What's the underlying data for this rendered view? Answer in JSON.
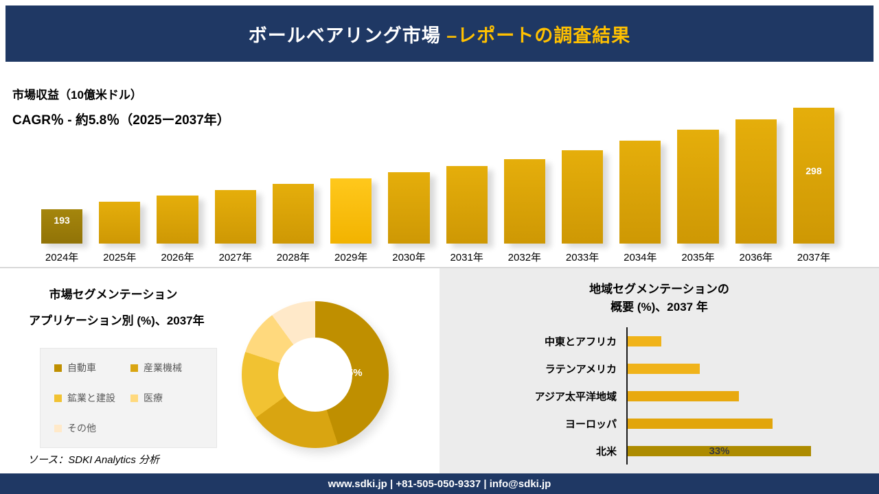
{
  "header": {
    "title_main": "ボールベアリング市場 ",
    "title_accent": "–レポートの調査結果"
  },
  "revenue_section": {
    "metric_label": "市場収益（10億米ドル）",
    "cagr_label": "CAGR％ - 約5.8％（2025ー2037年）"
  },
  "segmentation_section": {
    "title": "市場セグメンテーション",
    "subtitle": "アプリケーション別 (%)、2037年",
    "source": "ソース：SDKI Analytics 分析"
  },
  "regional_section": {
    "title_line1": "地域セグメンテーションの",
    "title_line2": "概要 (%)、2037 年"
  },
  "footer": {
    "text": "www.sdki.jp | +81-505-050-9337 | info@sdki.jp"
  },
  "colors": {
    "navy": "#1F3864",
    "accent_gold": "#FFC000",
    "divider_gray": "#D9D9D9",
    "panel_gray": "#ECECEC"
  },
  "chart_data": [
    {
      "id": "revenue_bar_chart",
      "type": "bar",
      "title": "市場収益（10億米ドル）",
      "subtitle": "CAGR％ - 約5.8％（2025ー2037年）",
      "categories": [
        "2024年",
        "2025年",
        "2026年",
        "2027年",
        "2028年",
        "2029年",
        "2030年",
        "2031年",
        "2032年",
        "2033年",
        "2034年",
        "2035年",
        "2036年",
        "2037年"
      ],
      "values": [
        193,
        201,
        207,
        213,
        219,
        225,
        231,
        238,
        245,
        254,
        264,
        275,
        286,
        298
      ],
      "value_labels": [
        {
          "index": 0,
          "text": "193",
          "top_offset": 6
        },
        {
          "index": 13,
          "text": "298",
          "top_offset": 82
        }
      ],
      "ylim": [
        180,
        310
      ],
      "bar_gradient": [
        "#E5AE0B",
        "#CE9804"
      ],
      "first_bar_gradient": [
        "#A5860D",
        "#917307"
      ],
      "highlight_index": 5,
      "highlight_gradient": [
        "#FFC81C",
        "#F2B300"
      ],
      "legend_position": "none",
      "grid": false
    },
    {
      "id": "application_donut",
      "type": "pie",
      "donut": true,
      "title": "市場セグメンテーション アプリケーション別 (%)、2037年",
      "categories": [
        "自動車",
        "産業機械",
        "鉱業と建設",
        "医療",
        "その他"
      ],
      "values": [
        45,
        20,
        15,
        10,
        10
      ],
      "colors": [
        "#BF8F00",
        "#D9A511",
        "#F1C232",
        "#FFD97D",
        "#FFE9C9"
      ],
      "slice_label": {
        "index": 0,
        "text": "45%"
      },
      "legend_position": "left"
    },
    {
      "id": "regional_hbar",
      "type": "bar",
      "orientation": "horizontal",
      "title": "地域セグメンテーションの概要 (%)、2037 年",
      "categories": [
        "中東とアフリカ",
        "ラテンアメリカ",
        "アジア太平洋地域",
        "ヨーロッパ",
        "北米"
      ],
      "values": [
        6,
        13,
        20,
        26,
        33
      ],
      "bar_colors": [
        "#F0B31A",
        "#F0B31A",
        "#E8A90F",
        "#E2A50B",
        "#AD8B00"
      ],
      "value_labels": [
        {
          "index": 4,
          "text": "33%"
        }
      ],
      "xlim": [
        0,
        40
      ],
      "grid": false
    }
  ]
}
